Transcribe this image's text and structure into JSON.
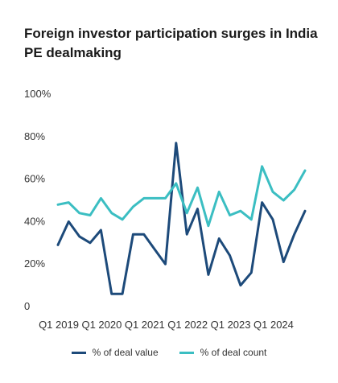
{
  "chart_data": {
    "type": "line",
    "title": "Foreign investor participation surges in India PE dealmaking",
    "x_tick_labels": [
      "Q1 2019",
      "Q1 2020",
      "Q1 2021",
      "Q1 2022",
      "Q1 2023",
      "Q1 2024"
    ],
    "y_tick_labels": [
      "0",
      "20%",
      "40%",
      "60%",
      "80%",
      "100%"
    ],
    "ylim": [
      0,
      100
    ],
    "x": [
      "Q1 2019",
      "Q2 2019",
      "Q3 2019",
      "Q4 2019",
      "Q1 2020",
      "Q2 2020",
      "Q3 2020",
      "Q4 2020",
      "Q1 2021",
      "Q2 2021",
      "Q3 2021",
      "Q4 2021",
      "Q1 2022",
      "Q2 2022",
      "Q3 2022",
      "Q4 2022",
      "Q1 2023",
      "Q2 2023",
      "Q3 2023",
      "Q4 2023",
      "Q1 2024",
      "Q2 2024",
      "Q3 2024",
      "Q4 2024"
    ],
    "grid": false,
    "legend_position": "bottom",
    "series": [
      {
        "name": "% of deal value",
        "color": "#1d4a7a",
        "values": [
          29,
          40,
          33,
          30,
          36,
          6,
          6,
          34,
          34,
          27,
          20,
          77,
          34,
          46,
          15,
          32,
          24,
          10,
          16,
          49,
          41,
          21,
          34,
          45
        ]
      },
      {
        "name": "% of deal count",
        "color": "#3bbec2",
        "values": [
          48,
          49,
          44,
          43,
          51,
          44,
          41,
          47,
          51,
          51,
          51,
          58,
          44,
          56,
          38,
          54,
          43,
          45,
          41,
          66,
          54,
          50,
          55,
          64
        ]
      }
    ]
  }
}
